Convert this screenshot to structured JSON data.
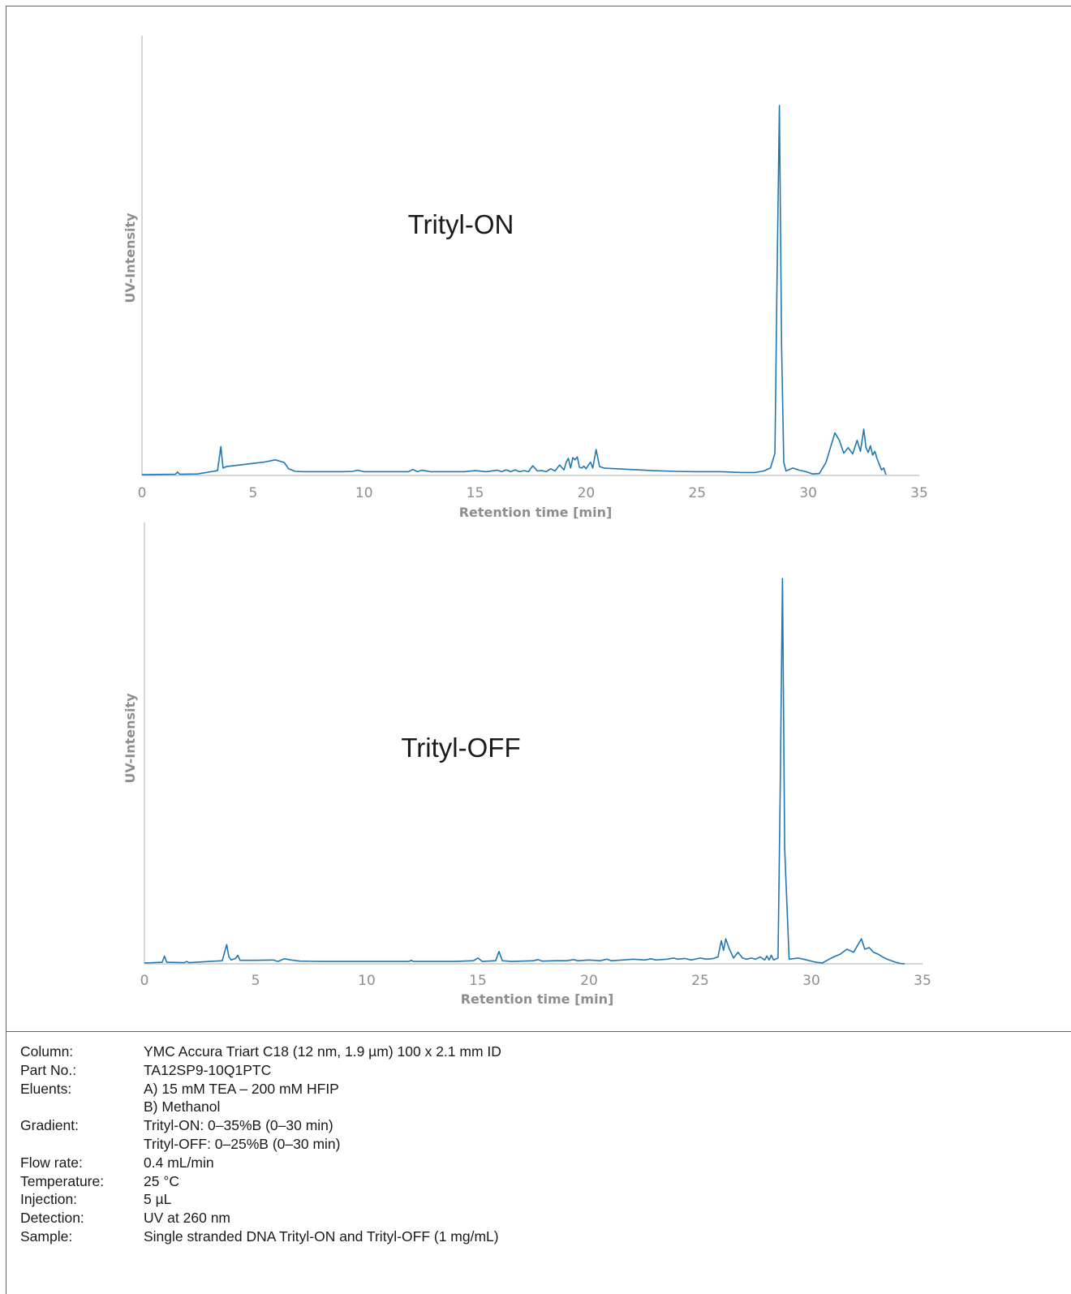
{
  "chart_data": [
    {
      "type": "line",
      "title": "Trityl-ON",
      "xlabel": "Retention time [min]",
      "ylabel": "UV-Intensity",
      "xlim": [
        0,
        35
      ],
      "ylim": [
        0,
        100
      ],
      "xticks": [
        0,
        5,
        10,
        15,
        20,
        25,
        30,
        35
      ],
      "grid": false,
      "color": "#1f78b4",
      "series": [
        {
          "x": [
            0,
            1.5,
            1.6,
            1.7,
            2.5,
            3.4,
            3.55,
            3.65,
            3.8,
            4.5,
            5.5,
            6.0,
            6.4,
            6.6,
            6.9,
            7.3,
            8,
            9,
            9.5,
            9.7,
            10,
            11,
            12,
            12.2,
            12.4,
            12.6,
            13,
            13.5,
            14,
            14.5,
            15,
            15.5,
            16,
            16.2,
            16.4,
            16.6,
            16.8,
            17,
            17.2,
            17.4,
            17.6,
            17.8,
            18,
            18.2,
            18.4,
            18.6,
            18.8,
            19.0,
            19.1,
            19.2,
            19.3,
            19.4,
            19.5,
            19.6,
            19.7,
            19.8,
            19.9,
            20.0,
            20.1,
            20.2,
            20.3,
            20.45,
            20.6,
            20.8,
            21.0,
            22,
            23,
            24,
            25,
            26,
            27,
            27.6,
            28.0,
            28.3,
            28.5,
            28.6,
            28.7,
            28.8,
            28.9,
            29.0,
            29.3,
            29.6,
            29.9,
            30.2,
            30.5,
            30.8,
            31.0,
            31.2,
            31.4,
            31.6,
            31.8,
            32.0,
            32.2,
            32.35,
            32.5,
            32.6,
            32.7,
            32.8,
            32.9,
            33.0,
            33.1,
            33.2,
            33.3,
            33.4,
            33.5
          ],
          "y": [
            0.2,
            0.3,
            0.9,
            0.3,
            0.4,
            1.3,
            7.8,
            2.0,
            2.4,
            2.9,
            3.6,
            4.2,
            3.5,
            1.8,
            1.1,
            1.0,
            1.0,
            1.0,
            1.1,
            1.4,
            1.0,
            1.0,
            1.0,
            1.6,
            1.0,
            1.4,
            1.0,
            1.0,
            1.0,
            1.0,
            1.3,
            1.0,
            1.4,
            1.0,
            1.5,
            1.0,
            1.5,
            1.0,
            1.3,
            1.0,
            2.6,
            1.2,
            1.3,
            1.0,
            1.8,
            1.2,
            2.8,
            1.5,
            3.5,
            4.6,
            2.0,
            4.8,
            4.2,
            5.0,
            2.2,
            2.0,
            2.5,
            1.8,
            2.8,
            3.6,
            2.0,
            7.0,
            2.4,
            2.0,
            1.9,
            1.6,
            1.3,
            1.1,
            1.0,
            1.0,
            0.8,
            0.8,
            1.2,
            2.0,
            6.0,
            55,
            100,
            35,
            3.5,
            1.2,
            2.0,
            1.4,
            1.0,
            0.4,
            0.5,
            3.5,
            7.5,
            11.5,
            9.5,
            6.0,
            7.5,
            5.8,
            9.5,
            6.5,
            12.5,
            7.5,
            6.2,
            8.0,
            5.5,
            6.5,
            4.5,
            3.0,
            1.5,
            2.0,
            0.2
          ]
        }
      ]
    },
    {
      "type": "line",
      "title": "Trityl-OFF",
      "xlabel": "Retention time [min]",
      "ylabel": "UV-Intensity",
      "xlim": [
        0,
        35
      ],
      "ylim": [
        0,
        100
      ],
      "xticks": [
        0,
        5,
        10,
        15,
        20,
        25,
        30,
        35
      ],
      "grid": false,
      "color": "#1f78b4",
      "series": [
        {
          "x": [
            0,
            0.8,
            0.9,
            1.0,
            1.8,
            1.9,
            2.0,
            3.5,
            3.7,
            3.8,
            3.9,
            4.1,
            4.2,
            4.3,
            5.0,
            5.8,
            6.0,
            6.3,
            6.6,
            7.0,
            8,
            9,
            10,
            11,
            11.9,
            12.0,
            12.1,
            13,
            14,
            14.8,
            15.0,
            15.2,
            15.8,
            15.95,
            16.1,
            16.5,
            17,
            17.5,
            17.7,
            17.9,
            18.5,
            19.0,
            19.3,
            19.5,
            20,
            20.5,
            20.8,
            21.0,
            21.5,
            22,
            22.5,
            22.8,
            23.0,
            23.5,
            23.8,
            24,
            24.3,
            24.6,
            25.0,
            25.3,
            25.6,
            25.8,
            25.95,
            26.05,
            26.15,
            26.3,
            26.5,
            26.7,
            26.9,
            27.1,
            27.3,
            27.5,
            27.7,
            27.9,
            28.0,
            28.1,
            28.2,
            28.3,
            28.5,
            28.6,
            28.7,
            28.8,
            29.0,
            29.4,
            29.8,
            30.2,
            30.5,
            30.8,
            31.0,
            31.3,
            31.6,
            31.9,
            32.1,
            32.25,
            32.4,
            32.6,
            32.8,
            33.0,
            33.2,
            33.4,
            33.6,
            33.8,
            34.0,
            34.2
          ],
          "y": [
            0.2,
            0.4,
            2.0,
            0.4,
            0.3,
            0.6,
            0.3,
            0.8,
            5.0,
            1.8,
            1.0,
            1.4,
            2.2,
            0.9,
            0.9,
            1.0,
            0.6,
            1.3,
            1.0,
            0.7,
            0.6,
            0.6,
            0.6,
            0.6,
            0.6,
            0.9,
            0.6,
            0.6,
            0.6,
            0.8,
            1.5,
            0.6,
            0.8,
            3.2,
            0.8,
            0.6,
            0.7,
            0.8,
            1.1,
            0.7,
            0.8,
            0.8,
            1.1,
            0.8,
            1.0,
            0.8,
            1.2,
            0.8,
            1.0,
            1.2,
            1.0,
            1.3,
            1.0,
            1.2,
            1.5,
            1.2,
            1.4,
            1.0,
            1.5,
            1.2,
            1.4,
            1.8,
            6.0,
            3.5,
            6.5,
            4.0,
            1.5,
            3.0,
            1.5,
            1.2,
            1.5,
            1.2,
            1.8,
            1.0,
            2.0,
            1.0,
            2.2,
            1.0,
            1.5,
            45,
            100,
            30,
            1.2,
            1.5,
            1.0,
            0.4,
            0.2,
            1.2,
            1.8,
            2.5,
            3.8,
            3.0,
            5.0,
            6.5,
            3.8,
            4.2,
            3.0,
            2.5,
            1.8,
            1.2,
            0.8,
            0.4,
            0.1,
            0.0
          ]
        }
      ]
    }
  ],
  "conditions": [
    {
      "label": "Column:",
      "values": [
        "YMC Accura Triart C18 (12 nm, 1.9 µm) 100 x 2.1 mm ID"
      ]
    },
    {
      "label": "Part No.:",
      "values": [
        "TA12SP9-10Q1PTC"
      ]
    },
    {
      "label": "Eluents:",
      "values": [
        "A) 15 mM TEA – 200 mM HFIP",
        "B) Methanol"
      ]
    },
    {
      "label": "Gradient:",
      "values": [
        "Trityl-ON:   0–35%B (0–30 min)",
        "Trityl-OFF:  0–25%B (0–30 min)"
      ]
    },
    {
      "label": "Flow rate:",
      "values": [
        "0.4 mL/min"
      ]
    },
    {
      "label": "Temperature:",
      "values": [
        "25 °C"
      ]
    },
    {
      "label": "Injection:",
      "values": [
        "5 µL"
      ]
    },
    {
      "label": "Detection:",
      "values": [
        "UV at 260 nm"
      ]
    },
    {
      "label": "Sample:",
      "values": [
        "Single stranded DNA Trityl-ON and Trityl-OFF (1 mg/mL)"
      ]
    }
  ]
}
